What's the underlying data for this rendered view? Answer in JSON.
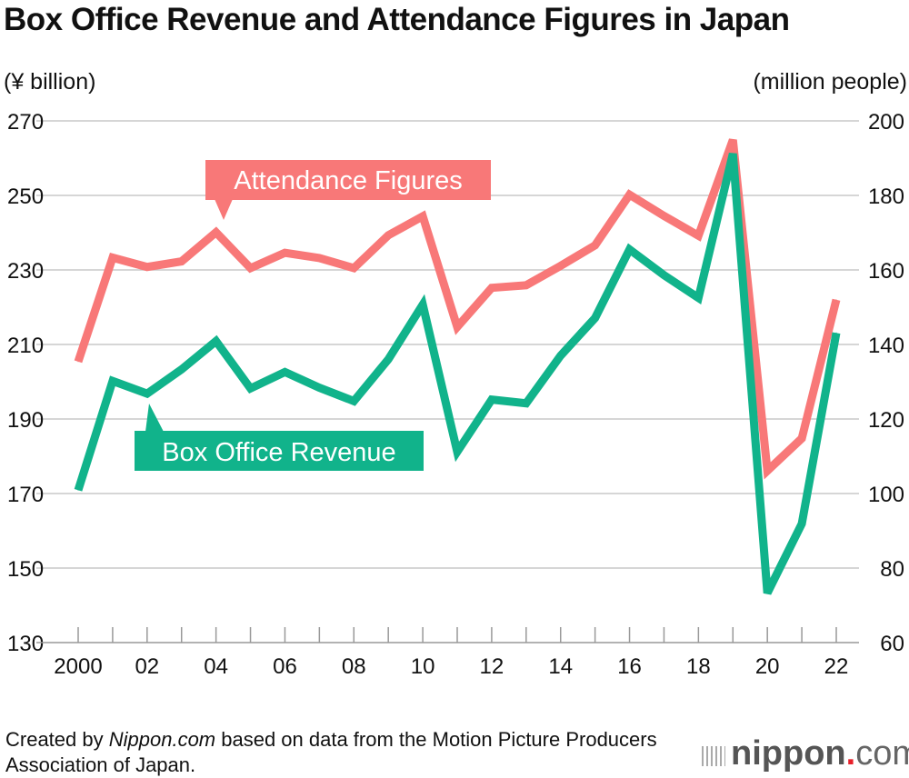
{
  "title": "Box Office Revenue and Attendance Figures in Japan",
  "footer": {
    "prefix": "Created by ",
    "source_name": "Nippon.com",
    "suffix": " based on data from the Motion Picture Producers Association of Japan."
  },
  "logo": {
    "main": "nippon",
    "dot": ".",
    "tld": "com"
  },
  "chart_data": {
    "type": "line",
    "title": "Box Office Revenue and Attendance Figures in Japan",
    "x": [
      2000,
      2001,
      2002,
      2003,
      2004,
      2005,
      2006,
      2007,
      2008,
      2009,
      2010,
      2011,
      2012,
      2013,
      2014,
      2015,
      2016,
      2017,
      2018,
      2019,
      2020,
      2021,
      2022
    ],
    "x_tick_labels": [
      {
        "x": 2000,
        "label": "2000"
      },
      {
        "x": 2002,
        "label": "02"
      },
      {
        "x": 2004,
        "label": "04"
      },
      {
        "x": 2006,
        "label": "06"
      },
      {
        "x": 2008,
        "label": "08"
      },
      {
        "x": 2010,
        "label": "10"
      },
      {
        "x": 2012,
        "label": "12"
      },
      {
        "x": 2014,
        "label": "14"
      },
      {
        "x": 2016,
        "label": "16"
      },
      {
        "x": 2018,
        "label": "18"
      },
      {
        "x": 2020,
        "label": "20"
      },
      {
        "x": 2022,
        "label": "22"
      }
    ],
    "ylabel_left": "(¥ billion)",
    "ylabel_right": "(million people)",
    "ylim_left": [
      130,
      270
    ],
    "ylim_right": [
      60,
      200
    ],
    "yticks_left": [
      130,
      150,
      170,
      190,
      210,
      230,
      250,
      270
    ],
    "yticks_right": [
      60,
      80,
      100,
      120,
      140,
      160,
      180,
      200
    ],
    "grid": true,
    "series": [
      {
        "name": "Attendance Figures",
        "axis": "right",
        "color": "#f87878",
        "values": [
          135.4,
          163.3,
          160.8,
          162.3,
          170.1,
          160.5,
          164.6,
          163.2,
          160.5,
          169.3,
          174.4,
          144.7,
          155.2,
          155.9,
          161.1,
          166.6,
          180.2,
          174.5,
          169.2,
          194.9,
          106.1,
          114.8,
          152.0
        ]
      },
      {
        "name": "Box Office Revenue",
        "axis": "left",
        "color": "#11b38b",
        "values": [
          170.9,
          200.2,
          196.8,
          203.3,
          210.9,
          198.2,
          202.6,
          198.4,
          194.8,
          206.0,
          220.7,
          181.2,
          195.2,
          194.2,
          207.0,
          217.1,
          235.5,
          228.6,
          222.5,
          261.2,
          143.3,
          161.9,
          213.1
        ]
      }
    ]
  }
}
